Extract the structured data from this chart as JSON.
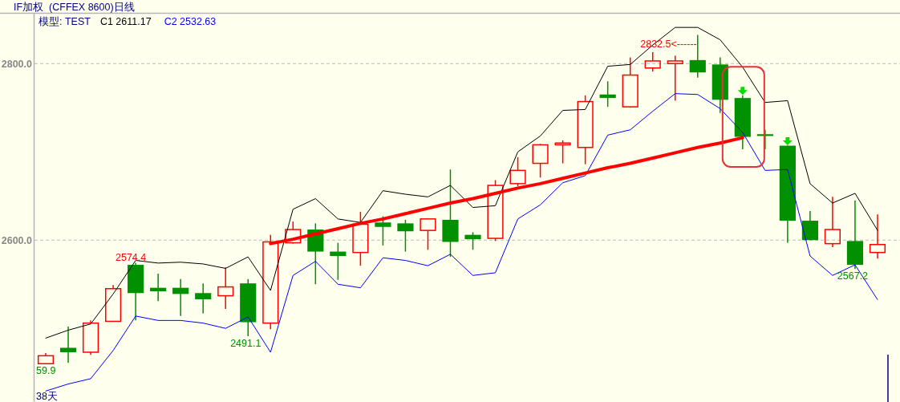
{
  "chart_data": {
    "type": "candlestick",
    "title": "IF加权  (CFFEX 8600)日线",
    "subtitle": "模型: TEST",
    "categories": [
      null,
      null,
      null,
      null,
      null,
      null,
      null,
      null,
      null,
      null,
      null,
      null,
      null,
      null,
      null,
      null,
      null,
      null,
      null,
      null,
      null,
      null,
      null,
      null,
      null,
      null,
      null,
      null,
      null,
      null,
      null,
      null,
      null,
      null,
      null,
      null,
      null,
      null
    ],
    "ohlc": [
      [
        2460,
        2472,
        2459.9,
        2469
      ],
      [
        2478,
        2502,
        2461,
        2473
      ],
      [
        2473,
        2509,
        2470,
        2506
      ],
      [
        2508,
        2549,
        2508,
        2545
      ],
      [
        2572,
        2574.4,
        2509,
        2540
      ],
      [
        2546,
        2562,
        2531,
        2542
      ],
      [
        2546,
        2556,
        2514,
        2539
      ],
      [
        2540,
        2551,
        2517,
        2533
      ],
      [
        2537,
        2569,
        2522,
        2547
      ],
      [
        2551,
        2556,
        2491.1,
        2507
      ],
      [
        2506,
        2606,
        2499,
        2598
      ],
      [
        2597,
        2621,
        2596,
        2612
      ],
      [
        2612,
        2619,
        2550,
        2587
      ],
      [
        2587,
        2597,
        2555,
        2582
      ],
      [
        2586,
        2632,
        2571,
        2618
      ],
      [
        2620,
        2627,
        2594,
        2615
      ],
      [
        2619,
        2623,
        2587,
        2610
      ],
      [
        2611,
        2624,
        2589,
        2624
      ],
      [
        2623,
        2680,
        2581,
        2598
      ],
      [
        2606,
        2609,
        2589,
        2601
      ],
      [
        2602,
        2668,
        2599,
        2662
      ],
      [
        2664,
        2694,
        2661,
        2679
      ],
      [
        2687,
        2709,
        2671,
        2708
      ],
      [
        2708,
        2713,
        2687,
        2710
      ],
      [
        2705,
        2764,
        2686,
        2757
      ],
      [
        2765,
        2780,
        2751,
        2761
      ],
      [
        2751,
        2807,
        2750,
        2787
      ],
      [
        2795,
        2813,
        2791,
        2803
      ],
      [
        2800,
        2809,
        2758,
        2803
      ],
      [
        2804,
        2832.5,
        2784,
        2790
      ],
      [
        2799,
        2807,
        2744,
        2759
      ],
      [
        2761,
        2764,
        2703,
        2717
      ],
      [
        2720,
        2725,
        2703,
        2718
      ],
      [
        2707,
        2707,
        2597,
        2622
      ],
      [
        2622,
        2633,
        2600,
        2600
      ],
      [
        2596,
        2649,
        2592,
        2612
      ],
      [
        2599,
        2645,
        2567.2,
        2572
      ],
      [
        2586,
        2629,
        2579,
        2595
      ]
    ],
    "colors": [
      "#ff0000",
      "#009000",
      "#ff0000",
      "#ff0000",
      "#009000",
      "#009000",
      "#009000",
      "#009000",
      "#ff0000",
      "#009000",
      "#ff0000",
      "#ff0000",
      "#009000",
      "#009000",
      "#ff0000",
      "#009000",
      "#009000",
      "#ff0000",
      "#009000",
      "#009000",
      "#ff0000",
      "#ff0000",
      "#ff0000",
      "#ff0000",
      "#ff0000",
      "#009000",
      "#ff0000",
      "#ff0000",
      "#ff0000",
      "#009000",
      "#009000",
      "#009000",
      "#009000",
      "#009000",
      "#009000",
      "#ff0000",
      "#009000",
      "#ff0000"
    ],
    "series": [
      {
        "name": "C1 2611.17",
        "type": "line",
        "color": "#000000",
        "values": [
          2489,
          2498,
          2505,
          2539,
          2577,
          2574,
          2575,
          2573,
          2568,
          2581,
          2543,
          2635,
          2647,
          2624,
          2620,
          2656,
          2652,
          2649,
          2662,
          2637,
          2639,
          2700,
          2718,
          2747,
          2748,
          2797,
          2799,
          2821,
          2841,
          2841,
          2827,
          2796,
          2756,
          2758,
          2664,
          2642,
          2653,
          2611.17
        ]
      },
      {
        "name": "C2 2532.63",
        "type": "line",
        "color": "#0000ff",
        "values": [
          2429,
          2437,
          2443,
          2475,
          2514,
          2509,
          2509,
          2506,
          2500,
          2513,
          2473,
          2560,
          2576,
          2550,
          2546,
          2580,
          2577,
          2571,
          2584,
          2560,
          2563,
          2624,
          2640,
          2665,
          2673,
          2719,
          2725,
          2746,
          2766,
          2765,
          2749,
          2722,
          2679,
          2680,
          2582,
          2560,
          2572,
          2532.63
        ]
      },
      {
        "type": "line",
        "color": "#ff0000",
        "values": [
          null,
          null,
          null,
          null,
          null,
          null,
          null,
          null,
          null,
          null,
          2596,
          2601,
          2607,
          2613,
          2619,
          2624,
          2630,
          2636,
          2642,
          2647,
          2653,
          2659,
          2664,
          2670,
          2676,
          2682,
          2687,
          2693,
          2699,
          2705,
          2710,
          2716,
          null,
          null,
          null,
          null,
          null,
          null
        ]
      },
      {
        "type": "scatter",
        "color": "#00dd00",
        "marker": "triangle",
        "values": [
          null,
          null,
          null,
          null,
          null,
          null,
          null,
          null,
          null,
          null,
          null,
          null,
          null,
          null,
          null,
          null,
          null,
          null,
          null,
          null,
          null,
          null,
          null,
          null,
          null,
          null,
          null,
          null,
          null,
          null,
          null,
          2769,
          null,
          2712,
          null,
          null,
          null,
          null
        ]
      }
    ],
    "ylim": [
      2416.6,
      2856.6
    ],
    "yticks": [
      {
        "value": 2600,
        "label": "2600.0"
      },
      {
        "value": 2800,
        "label": "2800.0"
      }
    ],
    "grid": "y",
    "legend": "top left",
    "annotations": [
      {
        "text": "59.9",
        "y": 2459.9
      },
      {
        "text": "2574.4",
        "y": 2574.4
      },
      {
        "text": "2491.1",
        "y": 2491.1
      },
      {
        "text": "2832.5<------",
        "y": 2832.5
      },
      {
        "text": "2567.2",
        "y": 2567.2
      },
      "38天"
    ]
  }
}
